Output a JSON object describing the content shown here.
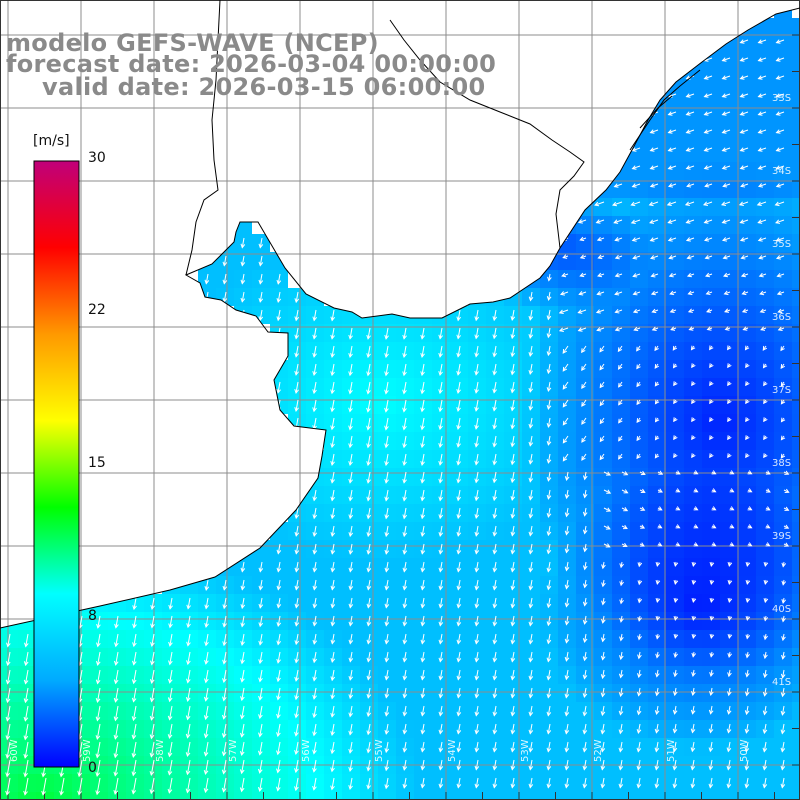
{
  "title": {
    "model": "modelo GEFS-WAVE (NCEP)",
    "forecast": "forecast date: 2026-03-04 00:00:00",
    "valid": "valid date: 2026-03-15 06:00:00"
  },
  "colorbar": {
    "unit": "[m/s]",
    "ticks": [
      "30",
      "22",
      "15",
      "8",
      "0"
    ],
    "colors": [
      "#0000ff",
      "#00aaff",
      "#00ffff",
      "#00ff00",
      "#ffff00",
      "#ff9900",
      "#ff0000",
      "#c0007a"
    ]
  },
  "map": {
    "lat_labels": [
      "33S",
      "34S",
      "35S",
      "36S",
      "37S",
      "38S",
      "39S",
      "40S",
      "41S"
    ],
    "lon_labels": [
      "60W",
      "59W",
      "58W",
      "57W",
      "56W",
      "55W",
      "54W",
      "53W",
      "52W",
      "51W",
      "50W"
    ],
    "land_color": "#ffffff",
    "arrow_color": "#ffffff"
  }
}
